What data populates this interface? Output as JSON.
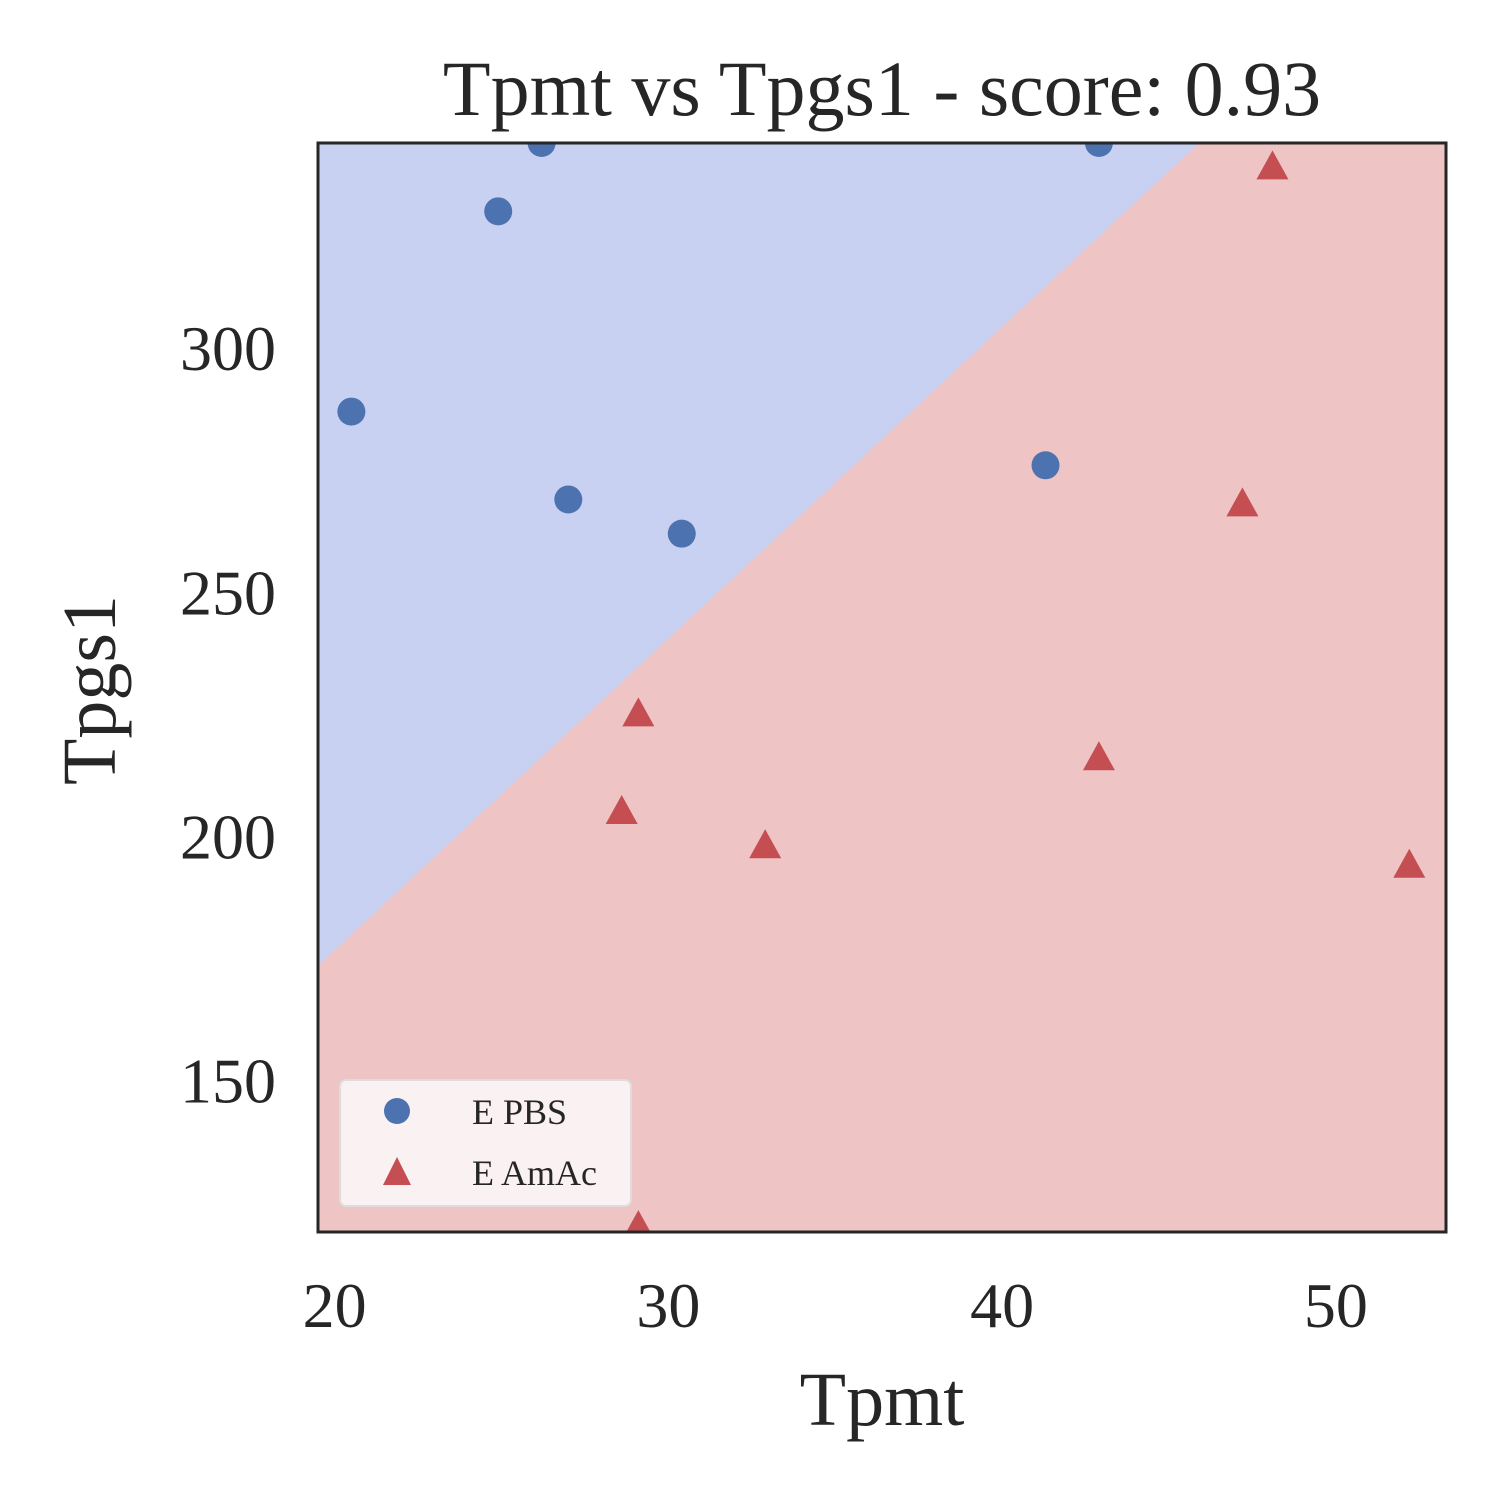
{
  "chart_data": {
    "type": "scatter",
    "title": "Tpmt vs Tpgs1 - score: 0.93",
    "xlabel": "Tpmt",
    "ylabel": "Tpgs1",
    "xlim": [
      19.5,
      53.3
    ],
    "ylim": [
      119,
      342
    ],
    "xticks": [
      20,
      30,
      40,
      50
    ],
    "yticks": [
      150,
      200,
      250,
      300
    ],
    "grid": false,
    "legend_position": "lower-left",
    "decision_boundary": {
      "description_line": [
        [
          19.5,
          173.5
        ],
        [
          45.9,
          342
        ]
      ],
      "region_above_class": "E PBS",
      "region_below_class": "E AmAc"
    },
    "colors": {
      "E PBS": "#4c72b0",
      "E AmAc": "#c44e52",
      "region_blue": "#c8d1f1",
      "region_red": "#efc4c4",
      "legend_bg": "#faf2f2"
    },
    "series": [
      {
        "name": "E PBS",
        "marker": "circle",
        "points": [
          [
            20.5,
            287
          ],
          [
            24.9,
            328
          ],
          [
            26.2,
            342
          ],
          [
            27.0,
            269
          ],
          [
            30.4,
            262
          ],
          [
            41.3,
            276
          ],
          [
            42.9,
            342
          ]
        ]
      },
      {
        "name": "E AmAc",
        "marker": "triangle",
        "points": [
          [
            48.1,
            337
          ],
          [
            47.2,
            268
          ],
          [
            29.1,
            225
          ],
          [
            42.9,
            216
          ],
          [
            28.6,
            205
          ],
          [
            32.9,
            198
          ],
          [
            52.2,
            194
          ],
          [
            29.1,
            120
          ]
        ]
      }
    ]
  }
}
